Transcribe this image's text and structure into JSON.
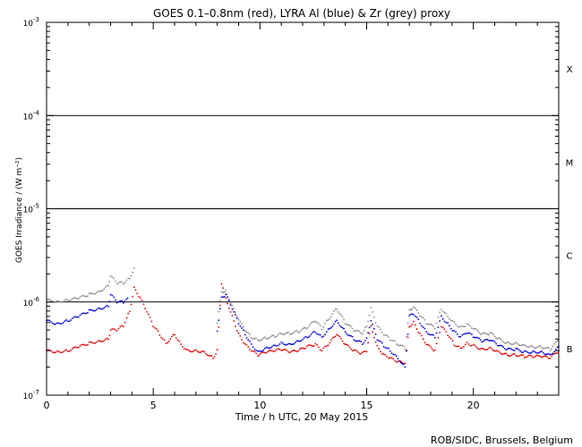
{
  "chart_data": {
    "type": "scatter",
    "title": "GOES 0.1–0.8nm (red), LYRA Al (blue) & Zr (grey) proxy",
    "xlabel": "Time / h UTC, 20 May 2015",
    "ylabel": "GOES Irradiance / (W m⁻²)",
    "xlim": [
      0,
      24
    ],
    "ylim": [
      1e-07,
      0.001
    ],
    "yscale": "log",
    "x_ticks": [
      0,
      5,
      10,
      15,
      20
    ],
    "y_ticks": [
      {
        "value": 1e-07,
        "mantissa": "10",
        "exp": "-7"
      },
      {
        "value": 1e-06,
        "mantissa": "10",
        "exp": "-6"
      },
      {
        "value": 1e-05,
        "mantissa": "10",
        "exp": "-5"
      },
      {
        "value": 0.0001,
        "mantissa": "10",
        "exp": "-4"
      },
      {
        "value": 0.001,
        "mantissa": "10",
        "exp": "-3"
      }
    ],
    "class_thresholds": [
      1e-06,
      1e-05,
      0.0001
    ],
    "flare_classes": [
      {
        "label": "B",
        "value": 3.16e-07
      },
      {
        "label": "C",
        "value": 3.16e-06
      },
      {
        "label": "M",
        "value": 3.16e-05
      },
      {
        "label": "X",
        "value": 0.000316
      }
    ],
    "series": [
      {
        "name": "GOES 0.1-0.8nm",
        "color": "#e00000",
        "x": [
          0.0,
          0.5,
          1.0,
          1.5,
          2.0,
          2.5,
          2.9,
          3.0,
          3.3,
          3.6,
          3.9,
          4.1,
          4.4,
          4.7,
          5.0,
          5.3,
          5.6,
          6.0,
          6.3,
          6.6,
          7.0,
          7.4,
          7.8,
          8.0,
          8.2,
          8.4,
          8.7,
          9.0,
          9.3,
          9.6,
          9.9,
          10.3,
          10.7,
          11.0,
          11.4,
          11.8,
          12.2,
          12.6,
          12.9,
          13.2,
          13.6,
          14.0,
          14.4,
          14.8,
          15.0,
          15.2,
          15.5,
          15.8,
          16.1,
          16.4,
          16.8,
          17.0,
          17.2,
          17.5,
          17.8,
          18.2,
          18.5,
          18.8,
          19.1,
          19.4,
          19.7,
          20.0,
          20.4,
          20.8,
          21.2,
          21.6,
          22.0,
          22.4,
          22.8,
          23.2,
          23.6,
          24.0
        ],
        "y": [
          3e-07,
          2.9e-07,
          3e-07,
          3.3e-07,
          3.6e-07,
          3.8e-07,
          4e-07,
          5e-07,
          5e-07,
          5.6e-07,
          8e-07,
          1.4e-06,
          1.1e-06,
          7.9e-07,
          5.6e-07,
          4.5e-07,
          3.6e-07,
          4.5e-07,
          3.5e-07,
          3e-07,
          3e-07,
          2.9e-07,
          2.5e-07,
          3e-07,
          1.6e-06,
          1.1e-06,
          7e-07,
          4.5e-07,
          3.5e-07,
          3e-07,
          2.7e-07,
          2.9e-07,
          3e-07,
          3.1e-07,
          2.9e-07,
          3e-07,
          3.3e-07,
          3.5e-07,
          3e-07,
          3.5e-07,
          4.5e-07,
          3.5e-07,
          3e-07,
          2.8e-07,
          3e-07,
          5.5e-07,
          3.3e-07,
          2.7e-07,
          2.5e-07,
          2.3e-07,
          2.2e-07,
          5.5e-07,
          6e-07,
          4.5e-07,
          3.5e-07,
          3e-07,
          5.5e-07,
          4.5e-07,
          3.5e-07,
          3.2e-07,
          3.6e-07,
          3.4e-07,
          3.1e-07,
          3.2e-07,
          2.9e-07,
          2.7e-07,
          2.7e-07,
          2.6e-07,
          2.6e-07,
          2.6e-07,
          2.5e-07,
          3e-07
        ]
      },
      {
        "name": "LYRA Al proxy",
        "color": "#0000d8",
        "x": [
          0.0,
          0.5,
          1.0,
          1.5,
          2.0,
          2.5,
          2.9,
          3.0,
          3.3,
          3.6,
          3.8,
          8.0,
          8.2,
          8.4,
          8.7,
          9.0,
          9.3,
          9.6,
          9.9,
          10.3,
          10.7,
          11.0,
          11.4,
          11.8,
          12.2,
          12.6,
          12.9,
          13.2,
          13.6,
          14.0,
          14.4,
          14.8,
          15.0,
          15.2,
          15.5,
          15.8,
          16.1,
          16.4,
          16.8,
          17.0,
          17.2,
          17.5,
          17.8,
          18.2,
          18.5,
          18.8,
          19.1,
          19.4,
          19.7,
          20.0,
          20.4,
          20.8,
          21.2,
          21.6,
          22.0,
          22.4,
          22.8,
          23.2,
          23.6,
          24.0
        ],
        "y": [
          6.3e-07,
          5.8e-07,
          6.3e-07,
          7e-07,
          8e-07,
          8.5e-07,
          9e-07,
          1.2e-06,
          1e-06,
          1e-06,
          1.1e-06,
          5e-07,
          1.1e-06,
          1.2e-06,
          8.5e-07,
          6e-07,
          4.5e-07,
          3.5e-07,
          2.9e-07,
          3.2e-07,
          3.4e-07,
          3.6e-07,
          3.5e-07,
          3.8e-07,
          4.2e-07,
          4.8e-07,
          4.2e-07,
          5e-07,
          6.3e-07,
          4.8e-07,
          4e-07,
          3.6e-07,
          4e-07,
          6.3e-07,
          4e-07,
          3.4e-07,
          3e-07,
          2.6e-07,
          2e-07,
          7e-07,
          7.5e-07,
          6e-07,
          4.8e-07,
          4.2e-07,
          7e-07,
          5.8e-07,
          4.8e-07,
          4.2e-07,
          4.7e-07,
          4.3e-07,
          3.8e-07,
          3.9e-07,
          3.4e-07,
          3.1e-07,
          3.1e-07,
          2.9e-07,
          2.9e-07,
          2.9e-07,
          2.7e-07,
          3.3e-07
        ]
      },
      {
        "name": "LYRA Zr proxy",
        "color": "#8c8c8c",
        "x": [
          0.0,
          0.5,
          1.0,
          1.5,
          2.0,
          2.5,
          2.9,
          3.0,
          3.3,
          3.6,
          3.9,
          4.1,
          8.0,
          8.2,
          8.4,
          8.7,
          9.0,
          9.3,
          9.6,
          9.9,
          10.3,
          10.7,
          11.0,
          11.4,
          11.8,
          12.2,
          12.6,
          12.9,
          13.2,
          13.6,
          14.0,
          14.4,
          14.8,
          15.0,
          15.2,
          15.5,
          15.8,
          16.1,
          16.4,
          16.8,
          17.0,
          17.2,
          17.5,
          17.8,
          18.2,
          18.5,
          18.8,
          19.1,
          19.4,
          19.7,
          20.0,
          20.4,
          20.8,
          21.2,
          21.6,
          22.0,
          22.4,
          22.8,
          23.2,
          23.6,
          24.0
        ],
        "y": [
          1.05e-06,
          1e-06,
          1.05e-06,
          1.1e-06,
          1.2e-06,
          1.3e-06,
          1.5e-06,
          1.9e-06,
          1.6e-06,
          1.6e-06,
          1.8e-06,
          2.3e-06,
          6e-07,
          1.3e-06,
          1.3e-06,
          9e-07,
          6.5e-07,
          5e-07,
          4.2e-07,
          3.9e-07,
          4.1e-07,
          4.3e-07,
          4.6e-07,
          4.6e-07,
          4.8e-07,
          5.3e-07,
          6.3e-07,
          5.2e-07,
          6.5e-07,
          8.5e-07,
          6e-07,
          5e-07,
          4.6e-07,
          5.5e-07,
          8.5e-07,
          5.5e-07,
          4.5e-07,
          4e-07,
          3.6e-07,
          3.2e-07,
          8e-07,
          8.8e-07,
          7.2e-07,
          6e-07,
          5.3e-07,
          8.5e-07,
          7e-07,
          6e-07,
          5.3e-07,
          5.7e-07,
          5.2e-07,
          4.5e-07,
          4.6e-07,
          4e-07,
          3.6e-07,
          3.6e-07,
          3.4e-07,
          3.3e-07,
          3.3e-07,
          3.1e-07,
          3.9e-07
        ]
      }
    ]
  },
  "credit": "ROB/SIDC, Brussels, Belgium"
}
